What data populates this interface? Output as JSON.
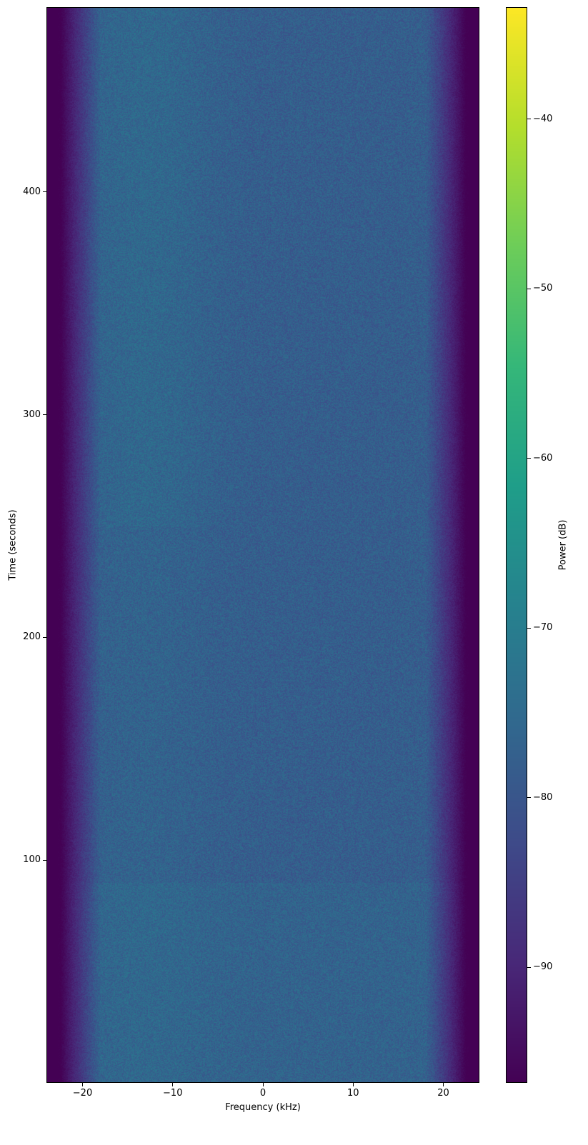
{
  "chart_data": {
    "type": "heatmap",
    "colormap": "viridis",
    "xlabel": "Frequency (kHz)",
    "ylabel": "Time (seconds)",
    "xlim": [
      -24,
      24
    ],
    "ylim": [
      0,
      483
    ],
    "xticks": [
      -20,
      -10,
      0,
      10,
      20
    ],
    "xtick_labels": [
      "−20",
      "−10",
      "0",
      "10",
      "20"
    ],
    "yticks": [
      100,
      200,
      300,
      400
    ],
    "ytick_labels": [
      "100",
      "200",
      "300",
      "400"
    ],
    "colorbar": {
      "label": "Power (dB)",
      "clim": [
        -96.8,
        -33.4
      ],
      "ticks": [
        -90,
        -80,
        -70,
        -60,
        -50,
        -40
      ],
      "tick_labels": [
        "−90",
        "−80",
        "−70",
        "−60",
        "−50",
        "−40"
      ]
    },
    "grid": false
  }
}
